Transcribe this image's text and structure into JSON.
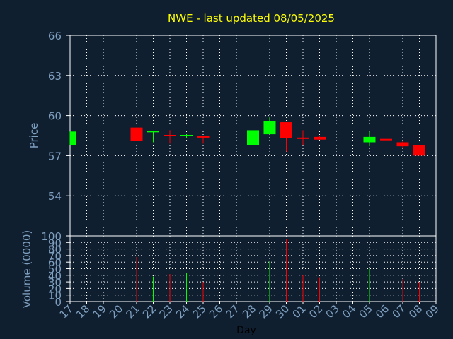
{
  "chart_data": [
    {
      "type": "candlestick",
      "title": "NWE - last updated 08/05/2025",
      "xlabel": "Day",
      "ylabel": "Price",
      "ylim": [
        51,
        66
      ],
      "yticks": [
        "54",
        "57",
        "60",
        "63",
        "66"
      ],
      "grid": true,
      "x_ticks": [
        "17",
        "18",
        "19",
        "20",
        "21",
        "22",
        "23",
        "24",
        "25",
        "26",
        "27",
        "28",
        "29",
        "30",
        "01",
        "02",
        "03",
        "04",
        "05",
        "06",
        "07",
        "08",
        "09"
      ],
      "candles": [
        {
          "x": "17",
          "open": 57.8,
          "high": 58.8,
          "low": 57.8,
          "close": 58.8
        },
        {
          "x": "21",
          "open": 59.1,
          "high": 59.1,
          "low": 58.1,
          "close": 58.1
        },
        {
          "x": "22",
          "open": 58.7,
          "high": 58.8,
          "low": 58.0,
          "close": 58.8
        },
        {
          "x": "23",
          "open": 58.5,
          "high": 58.9,
          "low": 57.9,
          "close": 58.4
        },
        {
          "x": "24",
          "open": 58.4,
          "high": 58.6,
          "low": 58.3,
          "close": 58.5
        },
        {
          "x": "25",
          "open": 58.4,
          "high": 58.5,
          "low": 57.9,
          "close": 58.3
        },
        {
          "x": "28",
          "open": 57.8,
          "high": 58.9,
          "low": 57.8,
          "close": 58.9
        },
        {
          "x": "29",
          "open": 58.6,
          "high": 59.9,
          "low": 58.6,
          "close": 59.6
        },
        {
          "x": "30",
          "open": 59.5,
          "high": 59.5,
          "low": 57.3,
          "close": 58.3
        },
        {
          "x": "01",
          "open": 58.3,
          "high": 58.9,
          "low": 57.8,
          "close": 58.2
        },
        {
          "x": "02",
          "open": 58.4,
          "high": 58.5,
          "low": 58.2,
          "close": 58.2
        },
        {
          "x": "05",
          "open": 58.0,
          "high": 58.8,
          "low": 57.7,
          "close": 58.4
        },
        {
          "x": "06",
          "open": 58.2,
          "high": 58.6,
          "low": 58.0,
          "close": 58.1
        },
        {
          "x": "07",
          "open": 58.0,
          "high": 58.1,
          "low": 57.6,
          "close": 57.7
        },
        {
          "x": "08",
          "open": 57.8,
          "high": 57.8,
          "low": 57.0,
          "close": 57.0
        }
      ]
    },
    {
      "type": "bar",
      "xlabel": "Day",
      "ylabel": "Volume (0000)",
      "ylim": [
        0,
        100
      ],
      "yticks": [
        "0",
        "10",
        "20",
        "30",
        "40",
        "50",
        "60",
        "70",
        "80",
        "90",
        "100"
      ],
      "grid": true,
      "x_ticks": [
        "17",
        "18",
        "19",
        "20",
        "21",
        "22",
        "23",
        "24",
        "25",
        "26",
        "27",
        "28",
        "29",
        "30",
        "01",
        "02",
        "03",
        "04",
        "05",
        "06",
        "07",
        "08",
        "09"
      ],
      "bars": [
        {
          "x": "21",
          "value": 68,
          "direction": "down"
        },
        {
          "x": "22",
          "value": 38,
          "direction": "up"
        },
        {
          "x": "23",
          "value": 42,
          "direction": "down"
        },
        {
          "x": "24",
          "value": 44,
          "direction": "up"
        },
        {
          "x": "25",
          "value": 30,
          "direction": "down"
        },
        {
          "x": "28",
          "value": 40,
          "direction": "up"
        },
        {
          "x": "29",
          "value": 62,
          "direction": "up"
        },
        {
          "x": "30",
          "value": 95,
          "direction": "down"
        },
        {
          "x": "01",
          "value": 40,
          "direction": "down"
        },
        {
          "x": "02",
          "value": 37,
          "direction": "down"
        },
        {
          "x": "05",
          "value": 50,
          "direction": "up"
        },
        {
          "x": "06",
          "value": 46,
          "direction": "down"
        },
        {
          "x": "07",
          "value": 34,
          "direction": "down"
        },
        {
          "x": "08",
          "value": 30,
          "direction": "down"
        }
      ]
    }
  ],
  "colors": {
    "background": "#0f1f30",
    "grid": "#ffffff",
    "frame": "#ffffff",
    "up": "#00ff00",
    "down": "#ff0000",
    "title": "#ffff00",
    "tick_text": "#7f9fbf"
  }
}
